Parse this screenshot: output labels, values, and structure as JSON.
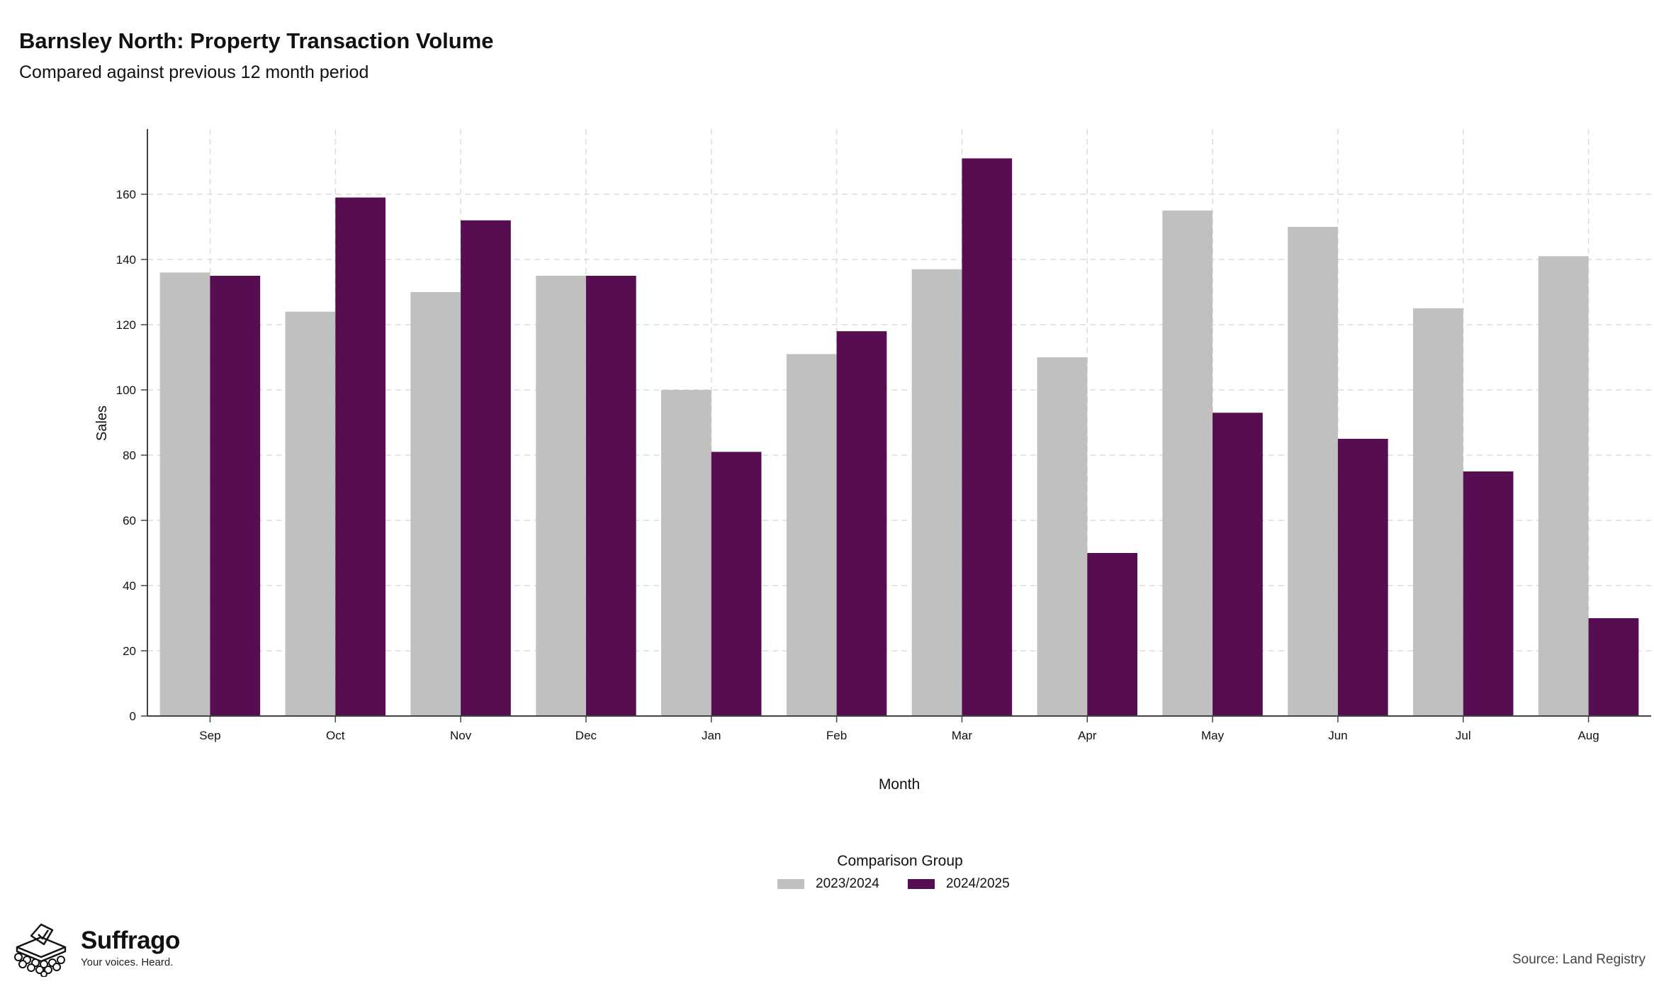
{
  "header": {
    "title": "Barnsley North: Property Transaction Volume",
    "subtitle": "Compared against previous 12 month period"
  },
  "chart_data": {
    "type": "bar",
    "title": "Barnsley North: Property Transaction Volume",
    "subtitle": "Compared against previous 12 month period",
    "xlabel": "Month",
    "ylabel": "Sales",
    "categories": [
      "Sep",
      "Oct",
      "Nov",
      "Dec",
      "Jan",
      "Feb",
      "Mar",
      "Apr",
      "May",
      "Jun",
      "Jul",
      "Aug"
    ],
    "series": [
      {
        "name": "2023/2024",
        "color": "#c0c0c0",
        "values": [
          136,
          124,
          130,
          135,
          100,
          111,
          137,
          110,
          155,
          150,
          125,
          141
        ]
      },
      {
        "name": "2024/2025",
        "color": "#560d52",
        "values": [
          135,
          159,
          152,
          135,
          81,
          118,
          171,
          50,
          93,
          85,
          75,
          30
        ]
      }
    ],
    "ylim": [
      0,
      180
    ],
    "yticks": [
      0,
      20,
      40,
      60,
      80,
      100,
      120,
      140,
      160
    ],
    "grid": true,
    "legend": {
      "title": "Comparison Group",
      "position": "bottom"
    }
  },
  "branding": {
    "name": "Suffrago",
    "tagline": "Your voices. Heard.",
    "logo_icon": "ballot-box-icon"
  },
  "footer": {
    "source": "Source: Land Registry"
  }
}
